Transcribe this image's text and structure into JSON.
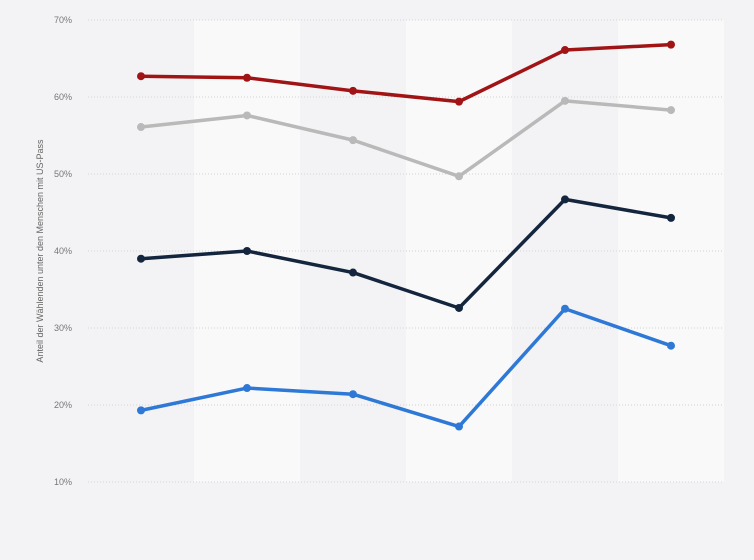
{
  "chart_data": {
    "type": "line",
    "title": "",
    "xlabel": "",
    "ylabel": "Anteil der Wählenden unter den Menschen mit US-Pass",
    "ylim": [
      10,
      70
    ],
    "yticks": [
      10,
      20,
      30,
      40,
      50,
      60,
      70
    ],
    "ytick_suffix": "%",
    "categories_count": 6,
    "grid": true,
    "legend": "none",
    "series": [
      {
        "color": "#a11416",
        "values": [
          62.7,
          62.5,
          60.8,
          59.4,
          66.1,
          66.8
        ]
      },
      {
        "color": "#b9b9b9",
        "values": [
          56.1,
          57.6,
          54.4,
          49.7,
          59.5,
          58.3
        ]
      },
      {
        "color": "#14263d",
        "values": [
          39.0,
          40.0,
          37.2,
          32.6,
          46.7,
          44.3
        ]
      },
      {
        "color": "#2e78d6",
        "values": [
          19.3,
          22.2,
          21.4,
          17.2,
          32.5,
          27.7
        ]
      }
    ]
  }
}
